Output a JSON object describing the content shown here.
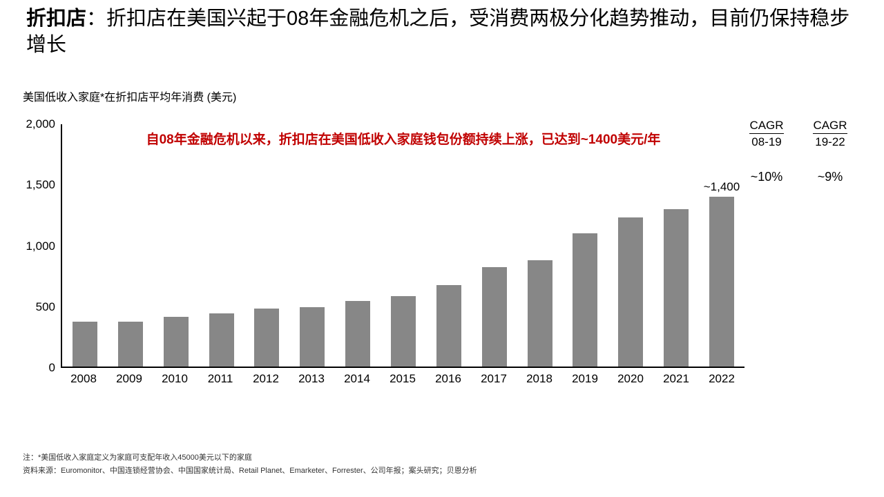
{
  "title": {
    "prefix": "折扣店",
    "separator": "：",
    "rest": "折扣店在美国兴起于08年金融危机之后，受消费两极分化趋势推动，目前仍保持稳步增长"
  },
  "chart_data": {
    "type": "bar",
    "title": "美国低收入家庭*在折扣店平均年消费 (美元)",
    "categories": [
      "2008",
      "2009",
      "2010",
      "2011",
      "2012",
      "2013",
      "2014",
      "2015",
      "2016",
      "2017",
      "2018",
      "2019",
      "2020",
      "2021",
      "2022"
    ],
    "values": [
      370,
      370,
      410,
      440,
      480,
      490,
      540,
      580,
      670,
      820,
      880,
      1100,
      1230,
      1300,
      1400
    ],
    "ylim": [
      0,
      2000
    ],
    "yticks": [
      0,
      500,
      1000,
      1500,
      2000
    ],
    "ytick_labels": [
      "0",
      "500",
      "1,000",
      "1,500",
      "2,000"
    ],
    "grid": false,
    "legend": null,
    "bar_color": "#878787",
    "axis_color": "#000000",
    "last_bar_label": "~1,400",
    "annotation": "自08年金融危机以来，折扣店在美国低收入家庭钱包份额持续上涨，已达到~1400美元/年",
    "annotation_color": "#C00000"
  },
  "cagr": {
    "columns": [
      {
        "header": "CAGR",
        "range": "08-19",
        "value": "~10%"
      },
      {
        "header": "CAGR",
        "range": "19-22",
        "value": "~9%"
      }
    ]
  },
  "footnotes": {
    "note": "注：*美国低收入家庭定义为家庭可支配年收入45000美元以下的家庭",
    "source": "资料来源：Euromonitor、中国连锁经营协会、中国国家统计局、Retail Planet、Emarketer、Forrester、公司年报；案头研究；贝恩分析"
  }
}
